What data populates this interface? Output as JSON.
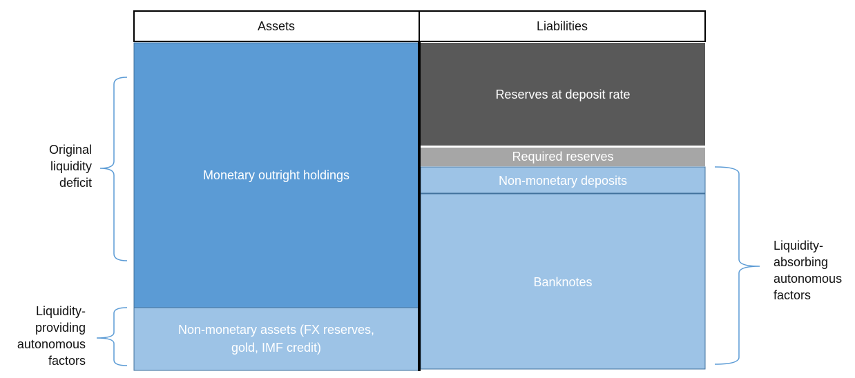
{
  "header": {
    "assets": "Assets",
    "liabilities": "Liabilities"
  },
  "assets": {
    "monetary": "Monetary outright holdings",
    "non_monetary": [
      "Non-monetary assets (FX reserves,",
      "gold, IMF credit)"
    ]
  },
  "liabilities": {
    "reserves_deposit": "Reserves at deposit rate",
    "required": "Required reserves",
    "non_monetary_deposits": "Non-monetary deposits",
    "banknotes": "Banknotes"
  },
  "brackets": {
    "original_deficit": [
      "Original",
      "liquidity",
      "deficit"
    ],
    "providing": [
      "Liquidity-",
      "providing",
      "autonomous",
      "factors"
    ],
    "absorbing": [
      "Liquidity-",
      "absorbing",
      "autonomous",
      "factors"
    ]
  }
}
